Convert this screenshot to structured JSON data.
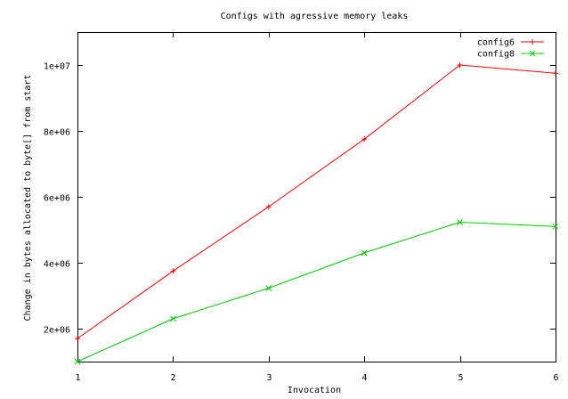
{
  "chart_data": {
    "type": "line",
    "title": "Configs with agressive memory leaks",
    "xlabel": "Invocation",
    "ylabel": "Change in bytes allocated to byte[] from start",
    "xlim": [
      1,
      6
    ],
    "ylim": [
      1000000,
      11000000
    ],
    "x_ticks": [
      1,
      2,
      3,
      4,
      5,
      6
    ],
    "y_ticks": [
      2000000,
      4000000,
      6000000,
      8000000,
      10000000
    ],
    "x_tick_labels": [
      "1",
      "2",
      "3",
      "4",
      "5",
      "6"
    ],
    "y_tick_labels": [
      "2e+06",
      "4e+06",
      "6e+06",
      "8e+06",
      "1e+07"
    ],
    "grid": false,
    "legend_position": "top-right",
    "x": [
      1,
      2,
      3,
      4,
      5,
      6
    ],
    "series": [
      {
        "name": "config6",
        "color": "#ff0000",
        "marker": "plus",
        "values": [
          1700000,
          3750000,
          5700000,
          7750000,
          10000000,
          9750000
        ]
      },
      {
        "name": "config8",
        "color": "#00cc00",
        "marker": "cross",
        "values": [
          1000000,
          2300000,
          3230000,
          4300000,
          5230000,
          5100000
        ]
      }
    ]
  }
}
